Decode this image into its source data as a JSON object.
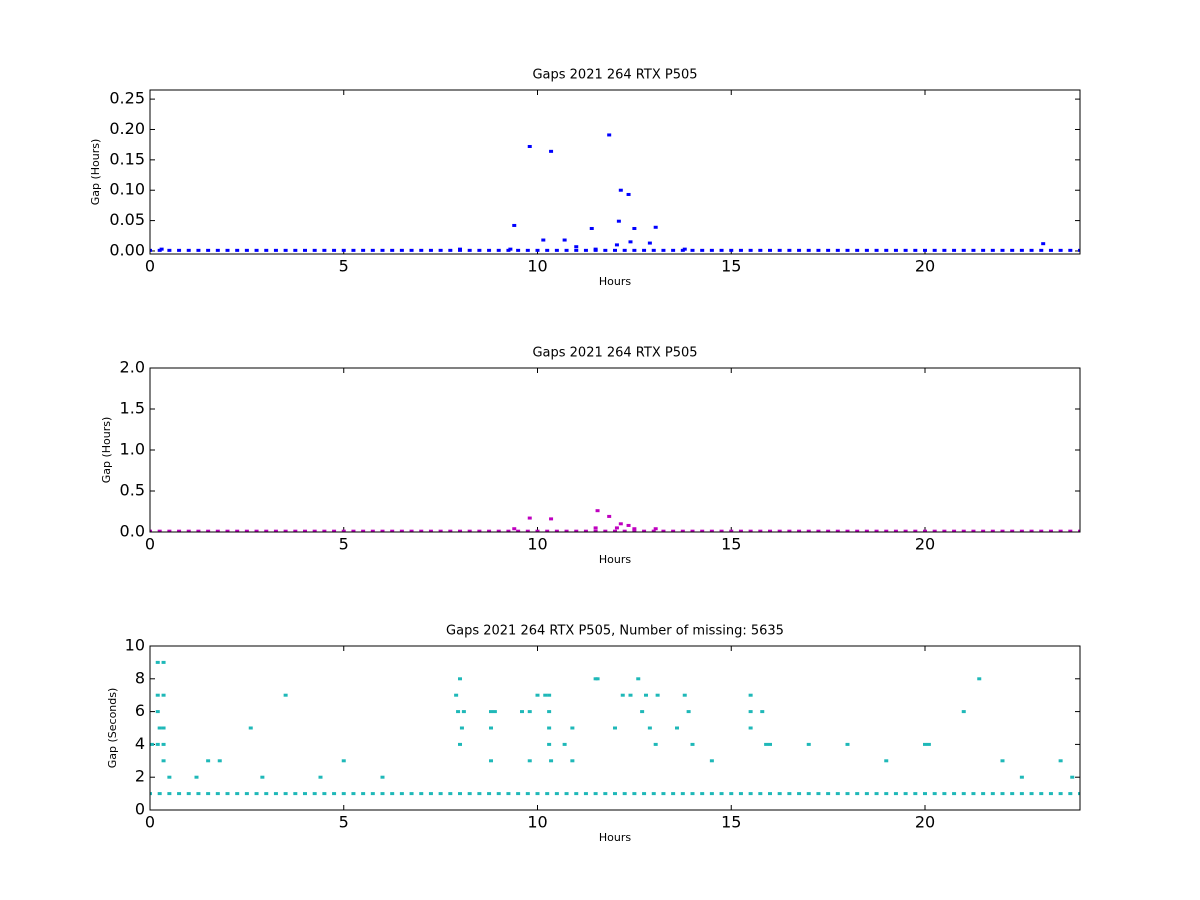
{
  "chart_data": [
    {
      "type": "scatter",
      "title": "Gaps 2021 264 RTX  P505",
      "xlabel": "Hours",
      "ylabel": "Gap (Hours)",
      "color": "#0000ff",
      "xlim": [
        0,
        24
      ],
      "ylim": [
        -0.005,
        0.265
      ],
      "xticks": [
        0,
        5,
        10,
        15,
        20
      ],
      "yticks": [
        {
          "value": 0,
          "label": "0.00"
        },
        {
          "value": 0.05,
          "label": "0.05"
        },
        {
          "value": 0.1,
          "label": "0.10"
        },
        {
          "value": 0.15,
          "label": "0.15"
        },
        {
          "value": 0.2,
          "label": "0.20"
        },
        {
          "value": 0.25,
          "label": "0.25"
        }
      ],
      "x": [
        0,
        0.25,
        0.5,
        0.75,
        1,
        1.25,
        1.5,
        1.75,
        2,
        2.25,
        2.5,
        2.75,
        3,
        3.25,
        3.5,
        3.75,
        4,
        4.25,
        4.5,
        4.75,
        5,
        5.25,
        5.5,
        5.75,
        6,
        6.25,
        6.5,
        6.75,
        7,
        7.25,
        7.5,
        7.75,
        8,
        8.25,
        8.5,
        8.75,
        9,
        9.25,
        9.5,
        9.75,
        10,
        10.25,
        10.5,
        10.75,
        11,
        11.25,
        11.5,
        11.75,
        12,
        12.25,
        12.5,
        12.75,
        13,
        13.25,
        13.5,
        13.75,
        14,
        14.25,
        14.5,
        14.75,
        15,
        15.25,
        15.5,
        15.75,
        16,
        16.25,
        16.5,
        16.75,
        17,
        17.25,
        17.5,
        17.75,
        18,
        18.25,
        18.5,
        18.75,
        19,
        19.25,
        19.5,
        19.75,
        20,
        20.25,
        20.5,
        20.75,
        21,
        21.25,
        21.5,
        21.75,
        22,
        22.25,
        22.5,
        22.75,
        23,
        23.25,
        23.5,
        23.75,
        24,
        0.3,
        8,
        9.3,
        9.4,
        9.8,
        10.15,
        10.35,
        10.7,
        11,
        11.4,
        11.5,
        11.85,
        12.05,
        12.1,
        12.15,
        12.35,
        12.4,
        12.5,
        12.9,
        13.05,
        13.8,
        23.05
      ],
      "values": [
        0.001,
        0.001,
        0.001,
        0.001,
        0.001,
        0.001,
        0.001,
        0.001,
        0.001,
        0.001,
        0.001,
        0.001,
        0.001,
        0.001,
        0.001,
        0.001,
        0.001,
        0.001,
        0.001,
        0.001,
        0.001,
        0.001,
        0.001,
        0.001,
        0.001,
        0.001,
        0.001,
        0.001,
        0.001,
        0.001,
        0.001,
        0.001,
        0.001,
        0.001,
        0.001,
        0.001,
        0.001,
        0.001,
        0.001,
        0.001,
        0.001,
        0.001,
        0.001,
        0.001,
        0.001,
        0.001,
        0.001,
        0.001,
        0.001,
        0.001,
        0.001,
        0.001,
        0.001,
        0.001,
        0.001,
        0.001,
        0.001,
        0.001,
        0.001,
        0.001,
        0.001,
        0.001,
        0.001,
        0.001,
        0.001,
        0.001,
        0.001,
        0.001,
        0.001,
        0.001,
        0.001,
        0.001,
        0.001,
        0.001,
        0.001,
        0.001,
        0.001,
        0.001,
        0.001,
        0.001,
        0.001,
        0.001,
        0.001,
        0.001,
        0.001,
        0.001,
        0.001,
        0.001,
        0.001,
        0.001,
        0.001,
        0.001,
        0.001,
        0.001,
        0.001,
        0.001,
        0.001,
        0.003,
        0.003,
        0.003,
        0.042,
        0.172,
        0.018,
        0.164,
        0.018,
        0.007,
        0.037,
        0.003,
        0.191,
        0.01,
        0.049,
        0.1,
        0.093,
        0.015,
        0.037,
        0.013,
        0.039,
        0.003,
        0.012
      ]
    },
    {
      "type": "scatter",
      "title": "Gaps 2021 264 RTX  P505",
      "xlabel": "Hours",
      "ylabel": "Gap (Hours)",
      "color": "#bf00bf",
      "xlim": [
        0,
        24
      ],
      "ylim": [
        0,
        2
      ],
      "xticks": [
        0,
        5,
        10,
        15,
        20
      ],
      "yticks": [
        {
          "value": 0,
          "label": "0.0"
        },
        {
          "value": 0.5,
          "label": "0.5"
        },
        {
          "value": 1,
          "label": "1.0"
        },
        {
          "value": 1.5,
          "label": "1.5"
        },
        {
          "value": 2,
          "label": "2.0"
        }
      ],
      "x": [
        0,
        0.25,
        0.5,
        0.75,
        1,
        1.25,
        1.5,
        1.75,
        2,
        2.25,
        2.5,
        2.75,
        3,
        3.25,
        3.5,
        3.75,
        4,
        4.25,
        4.5,
        4.75,
        5,
        5.25,
        5.5,
        5.75,
        6,
        6.25,
        6.5,
        6.75,
        7,
        7.25,
        7.5,
        7.75,
        8,
        8.25,
        8.5,
        8.75,
        9,
        9.25,
        9.5,
        9.75,
        10,
        10.25,
        10.5,
        10.75,
        11,
        11.25,
        11.5,
        11.75,
        12,
        12.25,
        12.5,
        12.75,
        13,
        13.25,
        13.5,
        13.75,
        14,
        14.25,
        14.5,
        14.75,
        15,
        15.25,
        15.5,
        15.75,
        16,
        16.25,
        16.5,
        16.75,
        17,
        17.25,
        17.5,
        17.75,
        18,
        18.25,
        18.5,
        18.75,
        19,
        19.25,
        19.5,
        19.75,
        20,
        20.25,
        20.5,
        20.75,
        21,
        21.25,
        21.5,
        21.75,
        22,
        22.25,
        22.5,
        22.75,
        23,
        23.25,
        23.5,
        23.75,
        24,
        9.4,
        9.8,
        10.35,
        11.5,
        11.55,
        11.85,
        12.05,
        12.15,
        12.35,
        12.5,
        13.05
      ],
      "values": [
        0.01,
        0.01,
        0.01,
        0.01,
        0.01,
        0.01,
        0.01,
        0.01,
        0.01,
        0.01,
        0.01,
        0.01,
        0.01,
        0.01,
        0.01,
        0.01,
        0.01,
        0.01,
        0.01,
        0.01,
        0.01,
        0.01,
        0.01,
        0.01,
        0.01,
        0.01,
        0.01,
        0.01,
        0.01,
        0.01,
        0.01,
        0.01,
        0.01,
        0.01,
        0.01,
        0.01,
        0.01,
        0.01,
        0.01,
        0.01,
        0.01,
        0.01,
        0.01,
        0.01,
        0.01,
        0.01,
        0.01,
        0.01,
        0.01,
        0.01,
        0.01,
        0.01,
        0.01,
        0.01,
        0.01,
        0.01,
        0.01,
        0.01,
        0.01,
        0.01,
        0.01,
        0.01,
        0.01,
        0.01,
        0.01,
        0.01,
        0.01,
        0.01,
        0.01,
        0.01,
        0.01,
        0.01,
        0.01,
        0.01,
        0.01,
        0.01,
        0.01,
        0.01,
        0.01,
        0.01,
        0.01,
        0.01,
        0.01,
        0.01,
        0.01,
        0.01,
        0.01,
        0.01,
        0.01,
        0.01,
        0.01,
        0.01,
        0.01,
        0.01,
        0.01,
        0.01,
        0.01,
        0.04,
        0.17,
        0.16,
        0.05,
        0.26,
        0.19,
        0.05,
        0.1,
        0.08,
        0.04,
        0.04
      ]
    },
    {
      "type": "scatter",
      "title": "Gaps 2021 264 RTX  P505, Number of missing: 5635",
      "xlabel": "Hours",
      "ylabel": "Gap (Seconds)",
      "color": "#1fb8b8",
      "xlim": [
        0,
        24
      ],
      "ylim": [
        0,
        10
      ],
      "xticks": [
        0,
        5,
        10,
        15,
        20
      ],
      "yticks": [
        0,
        2,
        4,
        6,
        8,
        10
      ],
      "x": [
        0,
        0.25,
        0.5,
        0.75,
        1,
        1.25,
        1.5,
        1.75,
        2,
        2.25,
        2.5,
        2.75,
        3,
        3.25,
        3.5,
        3.75,
        4,
        4.25,
        4.5,
        4.75,
        5,
        5.25,
        5.5,
        5.75,
        6,
        6.25,
        6.5,
        6.75,
        7,
        7.25,
        7.5,
        7.75,
        8,
        8.25,
        8.5,
        8.75,
        9,
        9.25,
        9.5,
        9.75,
        10,
        10.25,
        10.5,
        10.75,
        11,
        11.25,
        11.5,
        11.75,
        12,
        12.25,
        12.5,
        12.75,
        13,
        13.25,
        13.5,
        13.75,
        14,
        14.25,
        14.5,
        14.75,
        15,
        15.25,
        15.5,
        15.75,
        16,
        16.25,
        16.5,
        16.75,
        17,
        17.25,
        17.5,
        17.75,
        18,
        18.25,
        18.5,
        18.75,
        19,
        19.25,
        19.5,
        19.75,
        20,
        20.25,
        20.5,
        20.75,
        21,
        21.25,
        21.5,
        21.75,
        22,
        22.25,
        22.5,
        22.75,
        23,
        23.25,
        23.5,
        23.75,
        24,
        0.05,
        0.2,
        0.35,
        0.2,
        0.35,
        0.2,
        0.25,
        0.35,
        0.2,
        0.35,
        0.35,
        0.5,
        1.5,
        1.8,
        1.2,
        2.6,
        3.5,
        2.9,
        5,
        4.4,
        6,
        7.9,
        8,
        7.95,
        8.05,
        8,
        8.1,
        8.8,
        8.9,
        8.8,
        8.8,
        9.6,
        9.8,
        9.8,
        10,
        10.2,
        10.3,
        10.3,
        10.3,
        10.3,
        10.35,
        10.7,
        10.9,
        10.9,
        11.5,
        11.55,
        12,
        12.2,
        12.4,
        12.6,
        12.7,
        12.8,
        12.9,
        13.1,
        13.05,
        13.6,
        13.8,
        13.9,
        14,
        14.5,
        15.5,
        15.5,
        15.5,
        15.8,
        15.9,
        16,
        17,
        18,
        19,
        20,
        20.1,
        21,
        21.4,
        22,
        22.5,
        23.5,
        23.8
      ],
      "values": [
        1,
        1,
        1,
        1,
        1,
        1,
        1,
        1,
        1,
        1,
        1,
        1,
        1,
        1,
        1,
        1,
        1,
        1,
        1,
        1,
        1,
        1,
        1,
        1,
        1,
        1,
        1,
        1,
        1,
        1,
        1,
        1,
        1,
        1,
        1,
        1,
        1,
        1,
        1,
        1,
        1,
        1,
        1,
        1,
        1,
        1,
        1,
        1,
        1,
        1,
        1,
        1,
        1,
        1,
        1,
        1,
        1,
        1,
        1,
        1,
        1,
        1,
        1,
        1,
        1,
        1,
        1,
        1,
        1,
        1,
        1,
        1,
        1,
        1,
        1,
        1,
        1,
        1,
        1,
        1,
        1,
        1,
        1,
        1,
        1,
        1,
        1,
        1,
        1,
        1,
        1,
        1,
        1,
        1,
        1,
        1,
        1,
        4,
        9,
        9,
        7,
        7,
        6,
        5,
        5,
        4,
        4,
        3,
        2,
        3,
        3,
        2,
        5,
        7,
        2,
        3,
        2,
        2,
        7,
        8,
        6,
        5,
        4,
        6,
        6,
        6,
        5,
        3,
        6,
        6,
        3,
        7,
        7,
        7,
        6,
        5,
        4,
        3,
        4,
        5,
        3,
        8,
        8,
        5,
        7,
        7,
        8,
        6,
        7,
        5,
        7,
        4,
        5,
        7,
        6,
        4,
        3,
        7,
        6,
        5,
        6,
        4,
        4,
        4,
        4,
        3,
        4,
        4,
        6,
        8,
        3,
        2,
        3,
        2
      ]
    }
  ]
}
